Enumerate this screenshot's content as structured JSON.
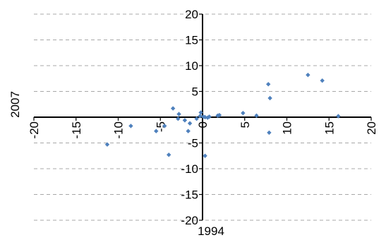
{
  "chart_data": {
    "type": "scatter",
    "title": "",
    "xlabel": "1994",
    "ylabel": "2007",
    "xlim": [
      -20,
      20
    ],
    "ylim": [
      -20,
      20
    ],
    "xticks": [
      -20,
      -15,
      -10,
      -5,
      0,
      5,
      10,
      15,
      20
    ],
    "yticks": [
      -20,
      -15,
      -10,
      -5,
      5,
      10,
      15,
      20
    ],
    "x_tick_labels": [
      "-20",
      "-15",
      "-10",
      "-5",
      "0",
      "5",
      "10",
      "15",
      "20"
    ],
    "y_tick_labels": [
      "-20",
      "-15",
      "-10",
      "-5",
      "5",
      "10",
      "15",
      "20"
    ],
    "grid": "horizontal dashed",
    "legend": "none",
    "marker_color": "#4F81BD",
    "points": [
      {
        "x": -11.3,
        "y": -5.3
      },
      {
        "x": -8.5,
        "y": -1.7
      },
      {
        "x": -5.5,
        "y": -2.7
      },
      {
        "x": -4.5,
        "y": -1.7
      },
      {
        "x": -4.0,
        "y": -7.3
      },
      {
        "x": -3.5,
        "y": 1.7
      },
      {
        "x": -2.9,
        "y": -0.3
      },
      {
        "x": -2.8,
        "y": 0.6
      },
      {
        "x": -2.1,
        "y": -0.6
      },
      {
        "x": -1.7,
        "y": -2.7
      },
      {
        "x": -1.5,
        "y": -1.2
      },
      {
        "x": -0.7,
        "y": -0.3
      },
      {
        "x": -0.3,
        "y": 0.2
      },
      {
        "x": -0.2,
        "y": 0.9
      },
      {
        "x": 0.1,
        "y": 0.1
      },
      {
        "x": 0.3,
        "y": 0.0
      },
      {
        "x": 0.6,
        "y": -0.1
      },
      {
        "x": 0.8,
        "y": 0.1
      },
      {
        "x": 0.3,
        "y": -7.5
      },
      {
        "x": 1.8,
        "y": 0.3
      },
      {
        "x": 2.0,
        "y": 0.4
      },
      {
        "x": 4.8,
        "y": 0.8
      },
      {
        "x": 6.4,
        "y": 0.3
      },
      {
        "x": 7.8,
        "y": 6.4
      },
      {
        "x": 8.0,
        "y": 3.7
      },
      {
        "x": 7.9,
        "y": -3.0
      },
      {
        "x": 12.5,
        "y": 8.2
      },
      {
        "x": 14.2,
        "y": 7.1
      },
      {
        "x": 16.1,
        "y": 0.2
      }
    ]
  }
}
